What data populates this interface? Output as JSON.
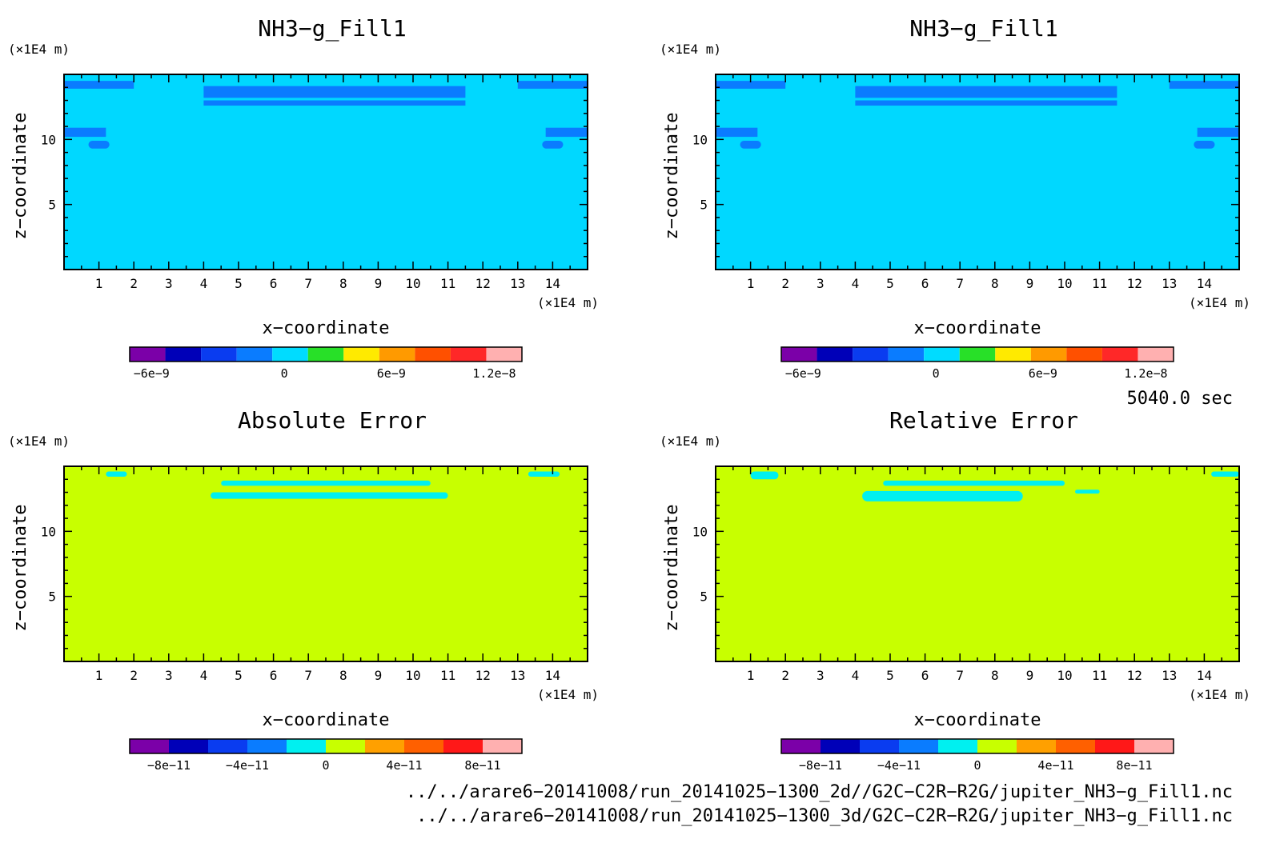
{
  "chart_data": [
    {
      "type": "heatmap",
      "title": "NH3−g_Fill1",
      "xlabel": "x−coordinate",
      "ylabel": "z−coordinate",
      "x_unit": "(×1E4 m)",
      "y_unit": "(×1E4 m)",
      "xlim": [
        0,
        15
      ],
      "ylim": [
        0,
        15
      ],
      "x_ticks": [
        "1",
        "2",
        "3",
        "4",
        "5",
        "6",
        "7",
        "8",
        "9",
        "10",
        "11",
        "12",
        "13",
        "14"
      ],
      "y_ticks": [
        "5",
        "10"
      ],
      "background_level": "0",
      "features": [
        {
          "kind": "band",
          "x": [
            4.0,
            11.5
          ],
          "z": [
            13.2,
            14.1
          ],
          "color": "#0a7cff"
        },
        {
          "kind": "band",
          "x": [
            4.0,
            11.5
          ],
          "z": [
            12.6,
            13.0
          ],
          "color": "#0a7cff"
        },
        {
          "kind": "band",
          "x": [
            0.0,
            2.0
          ],
          "z": [
            13.9,
            14.5
          ],
          "color": "#0a7cff"
        },
        {
          "kind": "band",
          "x": [
            13.0,
            15.0
          ],
          "z": [
            13.9,
            14.5
          ],
          "color": "#0a7cff"
        },
        {
          "kind": "band",
          "x": [
            0.0,
            1.2
          ],
          "z": [
            10.2,
            10.9
          ],
          "color": "#0a7cff"
        },
        {
          "kind": "band",
          "x": [
            13.8,
            15.0
          ],
          "z": [
            10.2,
            10.9
          ],
          "color": "#0a7cff"
        },
        {
          "kind": "blob",
          "x": [
            0.7,
            1.3
          ],
          "z": [
            9.3,
            9.9
          ],
          "color": "#0a7cff"
        },
        {
          "kind": "blob",
          "x": [
            13.7,
            14.3
          ],
          "z": [
            9.3,
            9.9
          ],
          "color": "#0a7cff"
        }
      ],
      "colorbar": {
        "colors": [
          "#7b00a8",
          "#0000b8",
          "#0a3cf0",
          "#0a7cff",
          "#00dcff",
          "#28e028",
          "#ffea00",
          "#ff9a00",
          "#ff5000",
          "#ff2828",
          "#ffb0b0"
        ],
        "tick_labels": [
          "−6e−9",
          "0",
          "6e−9",
          "1.2e−8"
        ]
      }
    },
    {
      "type": "heatmap",
      "title": "NH3−g_Fill1",
      "xlabel": "x−coordinate",
      "ylabel": "z−coordinate",
      "x_unit": "(×1E4 m)",
      "y_unit": "(×1E4 m)",
      "xlim": [
        0,
        15
      ],
      "ylim": [
        0,
        15
      ],
      "x_ticks": [
        "1",
        "2",
        "3",
        "4",
        "5",
        "6",
        "7",
        "8",
        "9",
        "10",
        "11",
        "12",
        "13",
        "14"
      ],
      "y_ticks": [
        "5",
        "10"
      ],
      "background_level": "0",
      "features": [
        {
          "kind": "band",
          "x": [
            4.0,
            11.5
          ],
          "z": [
            13.2,
            14.1
          ],
          "color": "#0a7cff"
        },
        {
          "kind": "band",
          "x": [
            4.0,
            11.5
          ],
          "z": [
            12.6,
            13.0
          ],
          "color": "#0a7cff"
        },
        {
          "kind": "band",
          "x": [
            0.0,
            2.0
          ],
          "z": [
            13.9,
            14.5
          ],
          "color": "#0a7cff"
        },
        {
          "kind": "band",
          "x": [
            13.0,
            15.0
          ],
          "z": [
            13.9,
            14.5
          ],
          "color": "#0a7cff"
        },
        {
          "kind": "band",
          "x": [
            0.0,
            1.2
          ],
          "z": [
            10.2,
            10.9
          ],
          "color": "#0a7cff"
        },
        {
          "kind": "band",
          "x": [
            13.8,
            15.0
          ],
          "z": [
            10.2,
            10.9
          ],
          "color": "#0a7cff"
        },
        {
          "kind": "blob",
          "x": [
            0.7,
            1.3
          ],
          "z": [
            9.3,
            9.9
          ],
          "color": "#0a7cff"
        },
        {
          "kind": "blob",
          "x": [
            13.7,
            14.3
          ],
          "z": [
            9.3,
            9.9
          ],
          "color": "#0a7cff"
        }
      ],
      "colorbar": {
        "colors": [
          "#7b00a8",
          "#0000b8",
          "#0a3cf0",
          "#0a7cff",
          "#00dcff",
          "#28e028",
          "#ffea00",
          "#ff9a00",
          "#ff5000",
          "#ff2828",
          "#ffb0b0"
        ],
        "tick_labels": [
          "−6e−9",
          "0",
          "6e−9",
          "1.2e−8"
        ]
      }
    },
    {
      "type": "heatmap",
      "title": "Absolute Error",
      "xlabel": "x−coordinate",
      "ylabel": "z−coordinate",
      "x_unit": "(×1E4 m)",
      "y_unit": "(×1E4 m)",
      "xlim": [
        0,
        15
      ],
      "ylim": [
        0,
        15
      ],
      "x_ticks": [
        "1",
        "2",
        "3",
        "4",
        "5",
        "6",
        "7",
        "8",
        "9",
        "10",
        "11",
        "12",
        "13",
        "14"
      ],
      "y_ticks": [
        "5",
        "10"
      ],
      "background_level": "0",
      "features": [
        {
          "kind": "blob",
          "x": [
            4.2,
            11.0
          ],
          "z": [
            12.5,
            13.0
          ],
          "color": "#00f0f0"
        },
        {
          "kind": "blob",
          "x": [
            4.5,
            10.5
          ],
          "z": [
            13.5,
            13.9
          ],
          "color": "#00f0f0"
        },
        {
          "kind": "blob",
          "x": [
            1.2,
            1.8
          ],
          "z": [
            14.2,
            14.6
          ],
          "color": "#00f0f0"
        },
        {
          "kind": "blob",
          "x": [
            13.3,
            14.2
          ],
          "z": [
            14.2,
            14.6
          ],
          "color": "#00f0f0"
        }
      ],
      "colorbar": {
        "colors": [
          "#7b00a8",
          "#0000b8",
          "#0a3cf0",
          "#0a7cff",
          "#00f0f0",
          "#c8ff00",
          "#ffa000",
          "#ff6000",
          "#ff1818",
          "#ffb0b0"
        ],
        "tick_labels": [
          "−8e−11",
          "−4e−11",
          "0",
          "4e−11",
          "8e−11"
        ]
      }
    },
    {
      "type": "heatmap",
      "title": "Relative Error",
      "xlabel": "x−coordinate",
      "ylabel": "z−coordinate",
      "x_unit": "(×1E4 m)",
      "y_unit": "(×1E4 m)",
      "xlim": [
        0,
        15
      ],
      "ylim": [
        0,
        15
      ],
      "x_ticks": [
        "1",
        "2",
        "3",
        "4",
        "5",
        "6",
        "7",
        "8",
        "9",
        "10",
        "11",
        "12",
        "13",
        "14"
      ],
      "y_ticks": [
        "5",
        "10"
      ],
      "background_level": "0",
      "features": [
        {
          "kind": "blob",
          "x": [
            4.2,
            8.8
          ],
          "z": [
            12.3,
            13.1
          ],
          "color": "#00f0f0"
        },
        {
          "kind": "blob",
          "x": [
            4.8,
            10.0
          ],
          "z": [
            13.5,
            13.9
          ],
          "color": "#00f0f0"
        },
        {
          "kind": "blob",
          "x": [
            10.3,
            11.0
          ],
          "z": [
            12.9,
            13.2
          ],
          "color": "#00f0f0"
        },
        {
          "kind": "blob",
          "x": [
            1.0,
            1.8
          ],
          "z": [
            14.0,
            14.6
          ],
          "color": "#00f0f0"
        },
        {
          "kind": "blob",
          "x": [
            14.2,
            15.0
          ],
          "z": [
            14.2,
            14.6
          ],
          "color": "#00f0f0"
        }
      ],
      "colorbar": {
        "colors": [
          "#7b00a8",
          "#0000b8",
          "#0a3cf0",
          "#0a7cff",
          "#00f0f0",
          "#c8ff00",
          "#ffa000",
          "#ff6000",
          "#ff1818",
          "#ffb0b0"
        ],
        "tick_labels": [
          "−8e−11",
          "−4e−11",
          "0",
          "4e−11",
          "8e−11"
        ]
      }
    }
  ],
  "info": {
    "time_label": "5040.0 sec",
    "file_2d": "../../arare6−20141008/run_20141025−1300_2d//G2C−C2R−R2G/jupiter_NH3−g_Fill1.nc",
    "file_3d": "../../arare6−20141008/run_20141025−1300_3d/G2C−C2R−R2G/jupiter_NH3−g_Fill1.nc"
  }
}
